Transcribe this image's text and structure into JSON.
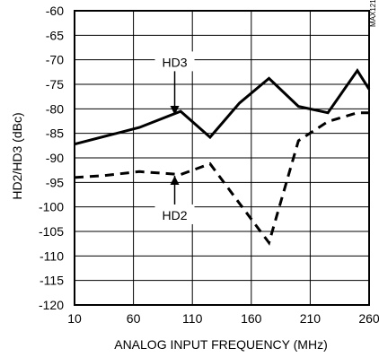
{
  "chart_data": {
    "type": "line",
    "xlabel": "ANALOG INPUT FREQUENCY (MHz)",
    "ylabel": "HD2/HD3 (dBc)",
    "xlim": [
      10,
      260
    ],
    "ylim": [
      -120,
      -60
    ],
    "xticks": [
      10,
      60,
      110,
      160,
      210,
      260
    ],
    "xtick_labels": [
      "10",
      "60",
      "110",
      "160",
      "210",
      "260"
    ],
    "yticks": [
      -60,
      -65,
      -70,
      -75,
      -80,
      -85,
      -90,
      -95,
      -100,
      -105,
      -110,
      -115,
      -120
    ],
    "ytick_labels": [
      "-60",
      "-65",
      "-70",
      "-75",
      "-80",
      "-85",
      "-90",
      "-95",
      "-100",
      "-105",
      "-110",
      "-115",
      "-120"
    ],
    "grid": true,
    "part_number": "MAX1219 toc07",
    "series": [
      {
        "name": "HD3",
        "style": "solid",
        "x": [
          10,
          65,
          100,
          125,
          150,
          175,
          200,
          225,
          250,
          260
        ],
        "y": [
          -87.2,
          -83.8,
          -80.5,
          -85.8,
          -78.8,
          -73.8,
          -79.5,
          -80.8,
          -72.2,
          -76
        ]
      },
      {
        "name": "HD2",
        "style": "dashed",
        "x": [
          10,
          35,
          65,
          100,
          125,
          150,
          175,
          200,
          225,
          250,
          260
        ],
        "y": [
          -94,
          -93.6,
          -92.8,
          -93.4,
          -91.2,
          -99.3,
          -107.3,
          -86.5,
          -82.6,
          -80.8,
          -80.8
        ]
      }
    ],
    "annotations": [
      {
        "text": "HD3",
        "x": 95,
        "y": -70.5
      },
      {
        "text": "HD2",
        "x": 95,
        "y": -101.7
      }
    ]
  }
}
